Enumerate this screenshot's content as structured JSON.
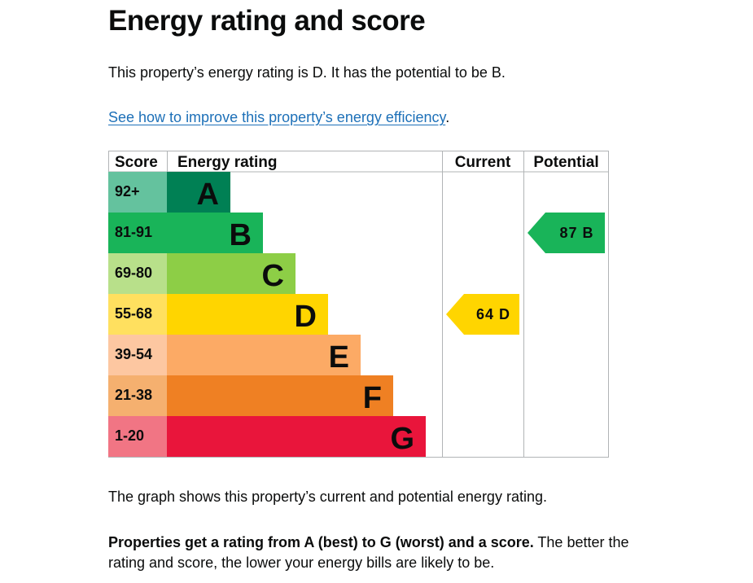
{
  "page": {
    "title": "Energy rating and score",
    "intro": "This property’s energy rating is D. It has the potential to be B.",
    "link_text": "See how to improve this property’s energy efficiency",
    "link_suffix": ".",
    "graph_note": "The graph shows this property’s current and potential energy rating.",
    "rating_note_bold": "Properties get a rating from A (best) to G (worst) and a score.",
    "rating_note_rest": " The better the rating and score, the lower your energy bills are likely to be."
  },
  "chart_data": {
    "type": "bar",
    "headers": {
      "score": "Score",
      "rating": "Energy rating",
      "current": "Current",
      "potential": "Potential"
    },
    "bands": [
      {
        "letter": "A",
        "score_range": "92+",
        "color": "#008054",
        "score_bg": "#64c29e"
      },
      {
        "letter": "B",
        "score_range": "81-91",
        "color": "#19b459",
        "score_bg": "#19b459"
      },
      {
        "letter": "C",
        "score_range": "69-80",
        "color": "#8dce46",
        "score_bg": "#b8e08a"
      },
      {
        "letter": "D",
        "score_range": "55-68",
        "color": "#ffd500",
        "score_bg": "#ffe05f"
      },
      {
        "letter": "E",
        "score_range": "39-54",
        "color": "#fcaa65",
        "score_bg": "#fdc7a1"
      },
      {
        "letter": "F",
        "score_range": "21-38",
        "color": "#ef8023",
        "score_bg": "#f5b06f"
      },
      {
        "letter": "G",
        "score_range": "1-20",
        "color": "#e9153b",
        "score_bg": "#f17584"
      }
    ],
    "current": {
      "score": 64,
      "rating": "D"
    },
    "potential": {
      "score": 87,
      "rating": "B"
    }
  }
}
